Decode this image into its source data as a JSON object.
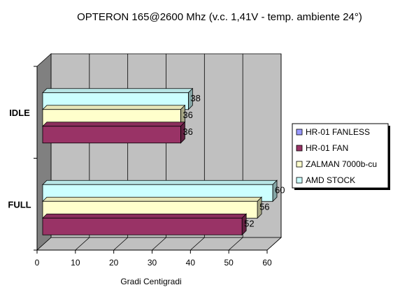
{
  "chart_data": {
    "type": "bar",
    "orientation": "horizontal",
    "three_d": true,
    "title": "OPTERON 165@2600 Mhz (v.c. 1,41V - temp. ambiente 24°)",
    "xlabel": "Gradi Centigradi",
    "ylabel": "",
    "xlim": [
      0,
      60
    ],
    "x_ticks": [
      "0",
      "10",
      "20",
      "30",
      "40",
      "50",
      "60"
    ],
    "grid": true,
    "legend_position": "right",
    "categories": [
      "IDLE",
      "FULL"
    ],
    "series": [
      {
        "name": "HR-01 FANLESS",
        "color": "#9999ff",
        "values": [
          null,
          null
        ]
      },
      {
        "name": "HR-01 FAN",
        "color": "#993366",
        "values": [
          36,
          52
        ]
      },
      {
        "name": "ZALMAN 7000b-cu",
        "color": "#ffffcc",
        "values": [
          36,
          56
        ]
      },
      {
        "name": "AMD STOCK",
        "color": "#ccffff",
        "values": [
          38,
          60
        ]
      }
    ]
  }
}
